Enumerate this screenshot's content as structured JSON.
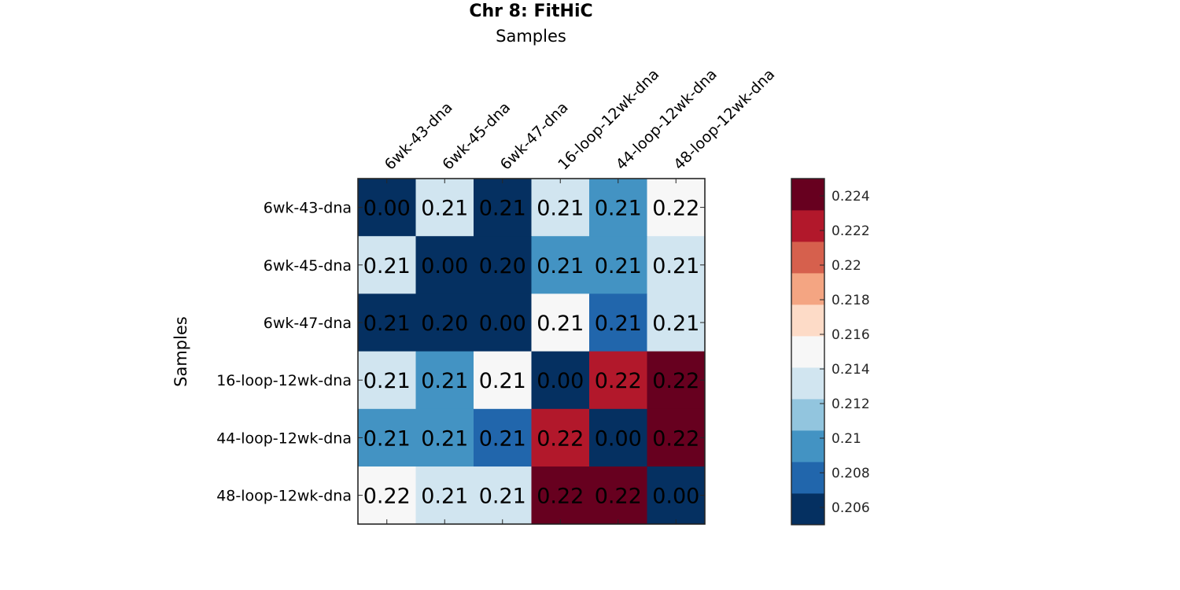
{
  "chart_data": {
    "type": "heatmap",
    "title": "Chr 8: FitHiC",
    "xlabel": "Samples",
    "ylabel": "Samples",
    "x_categories": [
      "6wk-43-dna",
      "6wk-45-dna",
      "6wk-47-dna",
      "16-loop-12wk-dna",
      "44-loop-12wk-dna",
      "48-loop-12wk-dna"
    ],
    "y_categories": [
      "6wk-43-dna",
      "6wk-45-dna",
      "6wk-47-dna",
      "16-loop-12wk-dna",
      "44-loop-12wk-dna",
      "48-loop-12wk-dna"
    ],
    "values": [
      [
        0.0,
        0.2125,
        0.205,
        0.2135,
        0.2095,
        0.2155
      ],
      [
        0.2125,
        0.0,
        0.204,
        0.2095,
        0.2095,
        0.2135
      ],
      [
        0.205,
        0.204,
        0.0,
        0.2145,
        0.2075,
        0.2135
      ],
      [
        0.2135,
        0.2095,
        0.2145,
        0.0,
        0.2225,
        0.2245
      ],
      [
        0.2095,
        0.2095,
        0.2075,
        0.2225,
        0.0,
        0.2245
      ],
      [
        0.2155,
        0.2135,
        0.2135,
        0.2245,
        0.2245,
        0.0
      ]
    ],
    "cell_labels": [
      [
        "0.00",
        "0.21",
        "0.21",
        "0.21",
        "0.21",
        "0.22"
      ],
      [
        "0.21",
        "0.00",
        "0.20",
        "0.21",
        "0.21",
        "0.21"
      ],
      [
        "0.21",
        "0.20",
        "0.00",
        "0.21",
        "0.21",
        "0.21"
      ],
      [
        "0.21",
        "0.21",
        "0.21",
        "0.00",
        "0.22",
        "0.22"
      ],
      [
        "0.21",
        "0.21",
        "0.21",
        "0.22",
        "0.00",
        "0.22"
      ],
      [
        "0.22",
        "0.21",
        "0.21",
        "0.22",
        "0.22",
        "0.00"
      ]
    ],
    "colorbar": {
      "range": [
        0.205,
        0.225
      ],
      "ticks": [
        "0.206",
        "0.208",
        "0.21",
        "0.212",
        "0.214",
        "0.216",
        "0.218",
        "0.22",
        "0.222",
        "0.224"
      ],
      "tick_values": [
        0.206,
        0.208,
        0.21,
        0.212,
        0.214,
        0.216,
        0.218,
        0.22,
        0.222,
        0.224
      ],
      "colors": [
        "#053061",
        "#2166ac",
        "#4393c3",
        "#92c5de",
        "#d1e5f0",
        "#f7f7f7",
        "#fddbc7",
        "#f4a582",
        "#d6604d",
        "#b2182b",
        "#67001f"
      ]
    }
  }
}
